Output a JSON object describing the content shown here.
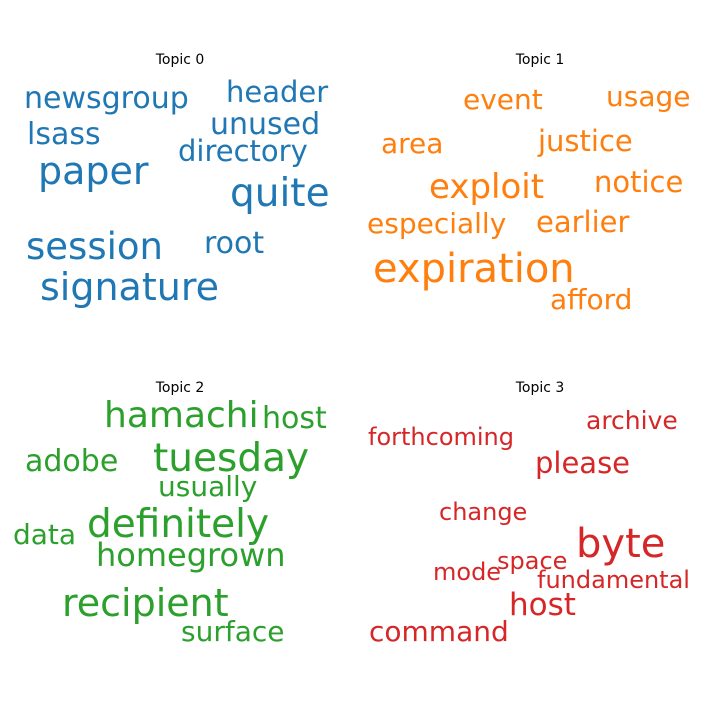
{
  "panels": [
    {
      "title": "Topic 0",
      "color": "#1f77b4",
      "words": [
        "newsgroup",
        "header",
        "unused",
        "lsass",
        "directory",
        "paper",
        "quite",
        "session",
        "root",
        "signature"
      ]
    },
    {
      "title": "Topic 1",
      "color": "#ff7f0e",
      "words": [
        "event",
        "usage",
        "area",
        "justice",
        "exploit",
        "notice",
        "especially",
        "earlier",
        "expiration",
        "afford"
      ]
    },
    {
      "title": "Topic 2",
      "color": "#2ca02c",
      "words": [
        "hamachi",
        "host",
        "adobe",
        "tuesday",
        "usually",
        "data",
        "definitely",
        "homegrown",
        "recipient",
        "surface"
      ]
    },
    {
      "title": "Topic 3",
      "color": "#d62728",
      "words": [
        "archive",
        "forthcoming",
        "please",
        "change",
        "byte",
        "space",
        "mode",
        "fundamental",
        "host",
        "command"
      ]
    }
  ]
}
